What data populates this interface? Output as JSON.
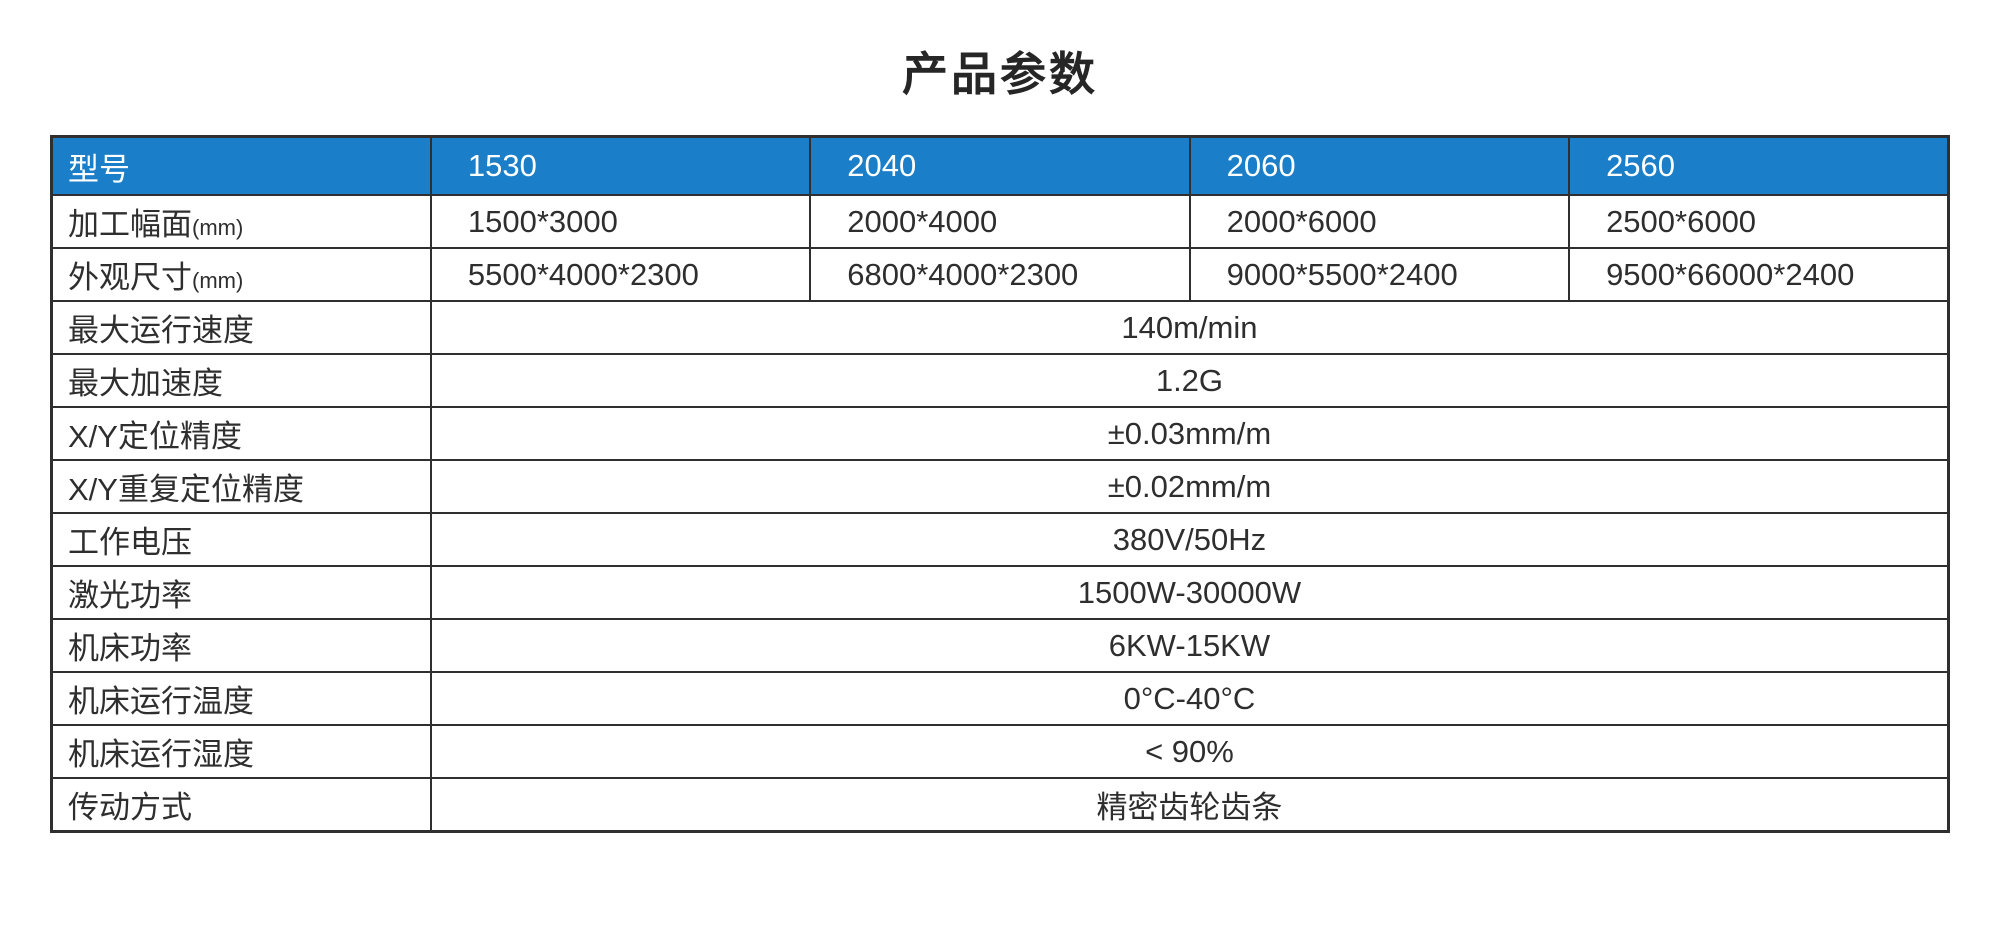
{
  "title": "产品参数",
  "colors": {
    "header_bg": "#1a7ec8",
    "header_text": "#ffffff",
    "border": "#2f2f2f",
    "body_text": "#2e2e2e"
  },
  "table": {
    "header": [
      "型号",
      "1530",
      "2040",
      "2060",
      "2560"
    ],
    "model_rows": [
      {
        "label": "加工幅面",
        "unit": "(mm)",
        "values": [
          "1500*3000",
          "2000*4000",
          "2000*6000",
          "2500*6000"
        ]
      },
      {
        "label": "外观尺寸",
        "unit": "(mm)",
        "values": [
          "5500*4000*2300",
          "6800*4000*2300",
          "9000*5500*2400",
          "9500*66000*2400"
        ]
      }
    ],
    "common_rows": [
      {
        "label": "最大运行速度",
        "value": "140m/min"
      },
      {
        "label": "最大加速度",
        "value": "1.2G"
      },
      {
        "label": "X/Y定位精度",
        "value": "±0.03mm/m"
      },
      {
        "label": "X/Y重复定位精度",
        "value": "±0.02mm/m"
      },
      {
        "label": "工作电压",
        "value": "380V/50Hz"
      },
      {
        "label": "激光功率",
        "value": "1500W-30000W"
      },
      {
        "label": "机床功率",
        "value": "6KW-15KW"
      },
      {
        "label": "机床运行温度",
        "value": "0°C-40°C"
      },
      {
        "label": "机床运行湿度",
        "value": "< 90%"
      },
      {
        "label": "传动方式",
        "value": "精密齿轮齿条"
      }
    ]
  }
}
